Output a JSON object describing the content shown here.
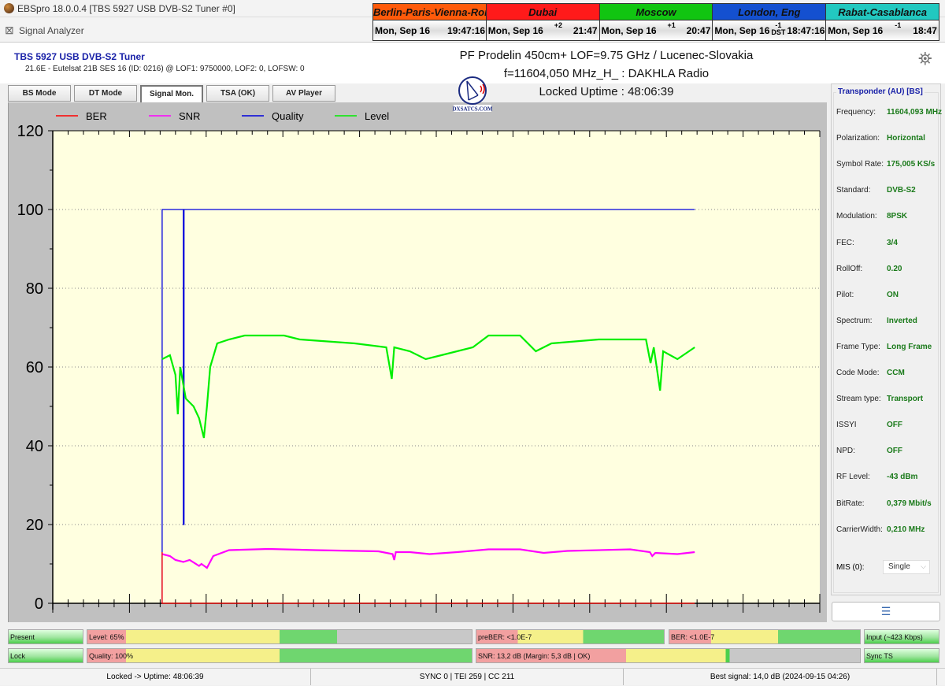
{
  "window": {
    "title": "EBSpro 18.0.0.4 [TBS 5927 USB DVB-S2 Tuner #0]",
    "subtitle": "Signal Analyzer"
  },
  "clocks": [
    {
      "city": "Berlin-Paris-Vienna-Roma",
      "date": "Mon, Sep 16",
      "offset": "",
      "time": "19:47:16",
      "color": "#ff5a0a"
    },
    {
      "city": "Dubai",
      "date": "Mon, Sep 16",
      "offset": "+2",
      "time": "21:47",
      "color": "#ff1a1a"
    },
    {
      "city": "Moscow",
      "date": "Mon, Sep 16",
      "offset": "+1",
      "time": "20:47",
      "color": "#11c511"
    },
    {
      "city": "London, Eng",
      "date": "Mon, Sep 16",
      "offset": "-1 DST",
      "time": "18:47:16",
      "color": "#1450d0"
    },
    {
      "city": "Rabat-Casablanca",
      "date": "Mon, Sep 16",
      "offset": "-1",
      "time": "18:47",
      "color": "#22c8c0"
    }
  ],
  "tuner": {
    "name": "TBS 5927 USB DVB-S2 Tuner",
    "info": "21.6E - Eutelsat 21B  SES 16 (ID: 0216) @ LOF1: 9750000, LOF2: 0, LOFSW: 0"
  },
  "header": {
    "line1": "PF Prodelin 450cm+ LOF=9.75 GHz / Lucenec-Slovakia",
    "line2": "f=11604,050 MHz_H_ : DAKHLA Radio",
    "line3": "Locked Uptime : 48:06:39",
    "logo_text": "DXSATCS.COM"
  },
  "tabs": [
    {
      "label": "BS Mode"
    },
    {
      "label": "DT Mode"
    },
    {
      "label": "Signal Mon.",
      "active": true
    },
    {
      "label": "TSA (OK)"
    },
    {
      "label": "AV Player"
    }
  ],
  "chart_data": {
    "type": "line",
    "title": "",
    "xlabel": "",
    "ylabel": "",
    "xlim": [
      0,
      50
    ],
    "ylim": [
      0,
      120
    ],
    "yticks": [
      0,
      20,
      40,
      60,
      80,
      100,
      120
    ],
    "grid": true,
    "legend_placement": "top-left",
    "background": "#ffffe0",
    "series": [
      {
        "name": "BER",
        "color": "#ff0000",
        "x": [
          7.13,
          7.13,
          41.85
        ],
        "y": [
          13,
          0,
          0
        ]
      },
      {
        "name": "SNR",
        "color": "#ff00ff",
        "x": [
          7.13,
          7.64,
          8.0,
          8.51,
          8.92,
          9.54,
          9.69,
          10.05,
          10.46,
          11.49,
          14.05,
          17.13,
          21.23,
          22.15,
          22.26,
          22.36,
          23.28,
          24.56,
          26.36,
          28.41,
          30.46,
          32.0,
          33.54,
          37.64,
          38.92,
          39.08,
          39.28,
          40.72,
          41.85
        ],
        "y": [
          12.5,
          12,
          11,
          10.5,
          11,
          9.5,
          10,
          9,
          12,
          13.5,
          13.8,
          13.5,
          13.2,
          12.5,
          11,
          13,
          13,
          12.5,
          13,
          13.7,
          13.7,
          12.8,
          13.3,
          13.7,
          13,
          12,
          12.8,
          12.5,
          13
        ]
      },
      {
        "name": "Quality",
        "color": "#0000dd",
        "x": [
          7.13,
          7.13,
          8.51,
          8.51,
          8.56,
          8.56,
          41.85
        ],
        "y": [
          0,
          100,
          100,
          20,
          20,
          100,
          100
        ]
      },
      {
        "name": "Level",
        "color": "#00ee00",
        "x": [
          7.13,
          7.64,
          8.0,
          8.15,
          8.31,
          8.67,
          9.18,
          9.54,
          9.85,
          10.05,
          10.26,
          10.72,
          11.49,
          12.51,
          15.08,
          16.1,
          19.69,
          21.74,
          22.1,
          22.26,
          23.28,
          24.31,
          25.33,
          27.38,
          28.41,
          30.46,
          31.49,
          32.51,
          35.59,
          38.67,
          38.97,
          39.18,
          39.59,
          39.79,
          40.72,
          41.85
        ],
        "y": [
          62,
          63,
          58,
          48,
          60,
          52,
          50,
          47,
          42,
          50,
          60,
          66,
          67,
          68,
          68,
          67,
          66,
          65,
          57,
          65,
          64,
          62,
          63,
          65,
          68,
          68,
          64,
          66,
          67,
          67,
          61,
          65,
          54,
          64,
          62,
          65
        ]
      }
    ]
  },
  "transponder": {
    "title": "Transponder (AU) [BS]",
    "rows": [
      {
        "k": "Frequency:",
        "v": "11604,093 MHz"
      },
      {
        "k": "Polarization:",
        "v": "Horizontal"
      },
      {
        "k": "Symbol Rate:",
        "v": "175,005 KS/s"
      },
      {
        "k": "Standard:",
        "v": "DVB-S2"
      },
      {
        "k": "Modulation:",
        "v": "8PSK"
      },
      {
        "k": "FEC:",
        "v": "3/4"
      },
      {
        "k": "RollOff:",
        "v": "0.20"
      },
      {
        "k": "Pilot:",
        "v": "ON"
      },
      {
        "k": "Spectrum:",
        "v": "Inverted"
      },
      {
        "k": "Frame Type:",
        "v": "Long Frame"
      },
      {
        "k": "Code Mode:",
        "v": "CCM"
      },
      {
        "k": "Stream type:",
        "v": "Transport"
      },
      {
        "k": "ISSYI",
        "v": "OFF"
      },
      {
        "k": "NPD:",
        "v": "OFF"
      },
      {
        "k": "RF Level:",
        "v": "-43 dBm"
      },
      {
        "k": "BitRate:",
        "v": "0,379 Mbit/s"
      },
      {
        "k": "CarrierWidth:",
        "v": "0,210 MHz"
      }
    ],
    "mis_label": "MIS (0):",
    "mis_value": "Single",
    "button_icon": "list-icon"
  },
  "meters": {
    "present": "Present",
    "lock": "Lock",
    "level": {
      "label": "Level: 65%",
      "percent": 65
    },
    "quality": {
      "label": "Quality: 100%",
      "percent": 100
    },
    "preber": "preBER: <1.0E-7",
    "ber": "BER: <1.0E-7",
    "snr": {
      "label": "SNR: 13,2 dB (Margin: 5,3 dB | OK)"
    },
    "input": "Input (~423 Kbps)",
    "sync": "Sync TS"
  },
  "status": {
    "left": "Locked -> Uptime: 48:06:39",
    "center": "SYNC 0 | TEI 259 | CC 211",
    "right": "Best signal: 14,0 dB (2024-09-15 04:26)"
  }
}
